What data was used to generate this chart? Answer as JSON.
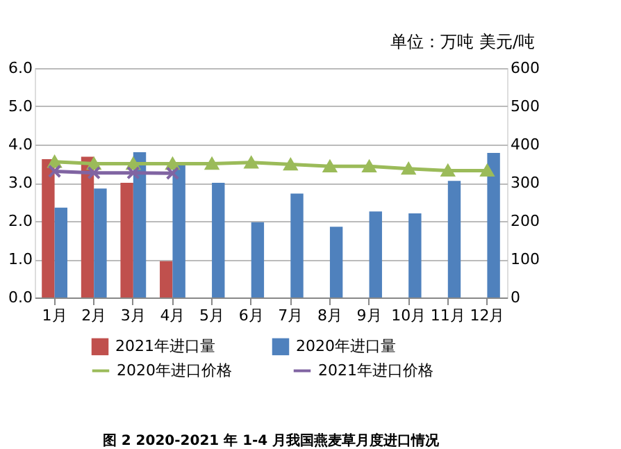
{
  "chart_data": {
    "type": "bar",
    "categories": [
      "1月",
      "2月",
      "3月",
      "4月",
      "5月",
      "6月",
      "7月",
      "8月",
      "9月",
      "10月",
      "11月",
      "12月"
    ],
    "series": [
      {
        "name": "2021年进口量",
        "color": "#c0504d",
        "values": [
          3.62,
          3.68,
          3.0,
          0.95,
          null,
          null,
          null,
          null,
          null,
          null,
          null,
          null
        ]
      },
      {
        "name": "2020年进口量",
        "color": "#4f81bd",
        "values": [
          2.35,
          2.85,
          3.8,
          3.5,
          3.0,
          1.97,
          2.72,
          1.85,
          2.25,
          2.2,
          3.05,
          3.78
        ]
      },
      {
        "name": "2020年进口价格",
        "color": "#9bbb59",
        "type": "line",
        "axis": "y2",
        "marker": "triangle",
        "values": [
          355,
          350,
          350,
          350,
          350,
          353,
          348,
          343,
          343,
          337,
          332,
          332
        ]
      },
      {
        "name": "2021年进口价格",
        "color": "#8064a2",
        "type": "line",
        "axis": "y2",
        "marker": "cross",
        "values": [
          330,
          326,
          326,
          325,
          null,
          null,
          null,
          null,
          null,
          null,
          null,
          null
        ]
      }
    ],
    "ylim": [
      0,
      6
    ],
    "yticks": [
      {
        "value": 0,
        "label": "0.0"
      },
      {
        "value": 1,
        "label": "1.0"
      },
      {
        "value": 2,
        "label": "2.0"
      },
      {
        "value": 3,
        "label": "3.0"
      },
      {
        "value": 4,
        "label": "4.0"
      },
      {
        "value": 5,
        "label": "5.0"
      },
      {
        "value": 6,
        "label": "6.0"
      }
    ],
    "y2lim": [
      0,
      600
    ],
    "y2ticks": [
      0,
      100,
      200,
      300,
      400,
      500,
      600
    ],
    "grid": "y",
    "legend": "bottom",
    "annotations": [
      "单位：万吨 美元/吨",
      "图 2    2020-2021 年 1-4 月我国燕麦草月度进口情况"
    ]
  }
}
